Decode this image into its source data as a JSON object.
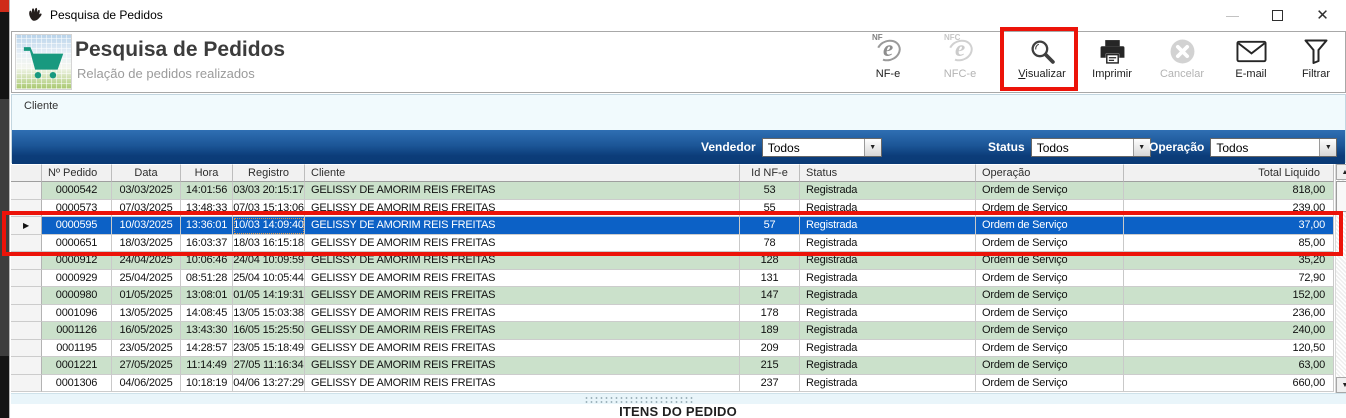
{
  "titlebar": {
    "title": "Pesquisa de Pedidos",
    "controls": {
      "minimize": "—",
      "maximize": "",
      "close": "✕"
    }
  },
  "header": {
    "title": "Pesquisa de Pedidos",
    "subtitle": "Relação de pedidos realizados"
  },
  "toolbar": [
    {
      "id": "nfe",
      "label": "NF-e",
      "icon": "nfe-icon",
      "disabled": false
    },
    {
      "id": "nfce",
      "label": "NFC-e",
      "icon": "nfce-icon",
      "disabled": true
    },
    {
      "id": "visualizar",
      "label": "Visualizar",
      "icon": "magnifier-icon",
      "disabled": false,
      "annotated": true
    },
    {
      "id": "imprimir",
      "label": "Imprimir",
      "icon": "printer-icon",
      "disabled": false
    },
    {
      "id": "cancelar",
      "label": "Cancelar",
      "icon": "cancel-icon",
      "disabled": true
    },
    {
      "id": "email",
      "label": "E-mail",
      "icon": "envelope-icon",
      "disabled": false
    },
    {
      "id": "filtrar",
      "label": "Filtrar",
      "icon": "funnel-icon",
      "disabled": false
    }
  ],
  "filter_panel": {
    "cliente_label": "Cliente",
    "filters": [
      {
        "label": "Vendedor",
        "value": "Todos"
      },
      {
        "label": "Status",
        "value": "Todos"
      },
      {
        "label": "Operação",
        "value": "Todos"
      }
    ]
  },
  "table": {
    "columns": [
      {
        "key": "sel",
        "label": ""
      },
      {
        "key": "pedido",
        "label": "Nº Pedido"
      },
      {
        "key": "data",
        "label": "Data"
      },
      {
        "key": "hora",
        "label": "Hora"
      },
      {
        "key": "registro",
        "label": "Registro"
      },
      {
        "key": "cliente",
        "label": "Cliente"
      },
      {
        "key": "idnfe",
        "label": "Id NF-e"
      },
      {
        "key": "status",
        "label": "Status"
      },
      {
        "key": "operacao",
        "label": "Operação"
      },
      {
        "key": "total",
        "label": "Total Liquido"
      }
    ],
    "rows": [
      {
        "pedido": "0000542",
        "data": "03/03/2025",
        "hora": "14:01:56",
        "registro": "03/03 20:15:17",
        "cliente": "GELISSY DE AMORIM REIS FREITAS",
        "idnfe": "53",
        "status": "Registrada",
        "operacao": "Ordem de Serviço",
        "total": "818,00"
      },
      {
        "pedido": "0000573",
        "data": "07/03/2025",
        "hora": "13:48:33",
        "registro": "07/03 15:13:06",
        "cliente": "GELISSY DE AMORIM REIS FREITAS",
        "idnfe": "55",
        "status": "Registrada",
        "operacao": "Ordem de Serviço",
        "total": "239,00"
      },
      {
        "pedido": "0000595",
        "data": "10/03/2025",
        "hora": "13:36:01",
        "registro": "10/03 14:09:40",
        "cliente": "GELISSY DE AMORIM REIS FREITAS",
        "idnfe": "57",
        "status": "Registrada",
        "operacao": "Ordem de Serviço",
        "total": "37,00"
      },
      {
        "pedido": "0000651",
        "data": "18/03/2025",
        "hora": "16:03:37",
        "registro": "18/03 16:15:18",
        "cliente": "GELISSY DE AMORIM REIS FREITAS",
        "idnfe": "78",
        "status": "Registrada",
        "operacao": "Ordem de Serviço",
        "total": "85,00"
      },
      {
        "pedido": "0000912",
        "data": "24/04/2025",
        "hora": "10:06:46",
        "registro": "24/04 10:09:59",
        "cliente": "GELISSY DE AMORIM REIS FREITAS",
        "idnfe": "128",
        "status": "Registrada",
        "operacao": "Ordem de Serviço",
        "total": "35,20"
      },
      {
        "pedido": "0000929",
        "data": "25/04/2025",
        "hora": "08:51:28",
        "registro": "25/04 10:05:44",
        "cliente": "GELISSY DE AMORIM REIS FREITAS",
        "idnfe": "131",
        "status": "Registrada",
        "operacao": "Ordem de Serviço",
        "total": "72,90"
      },
      {
        "pedido": "0000980",
        "data": "01/05/2025",
        "hora": "13:08:01",
        "registro": "01/05 14:19:31",
        "cliente": "GELISSY DE AMORIM REIS FREITAS",
        "idnfe": "147",
        "status": "Registrada",
        "operacao": "Ordem de Serviço",
        "total": "152,00"
      },
      {
        "pedido": "0001096",
        "data": "13/05/2025",
        "hora": "14:08:45",
        "registro": "13/05 15:03:38",
        "cliente": "GELISSY DE AMORIM REIS FREITAS",
        "idnfe": "178",
        "status": "Registrada",
        "operacao": "Ordem de Serviço",
        "total": "236,00"
      },
      {
        "pedido": "0001126",
        "data": "16/05/2025",
        "hora": "13:43:30",
        "registro": "16/05 15:25:50",
        "cliente": "GELISSY DE AMORIM REIS FREITAS",
        "idnfe": "189",
        "status": "Registrada",
        "operacao": "Ordem de Serviço",
        "total": "240,00"
      },
      {
        "pedido": "0001195",
        "data": "23/05/2025",
        "hora": "14:28:57",
        "registro": "23/05 15:18:49",
        "cliente": "GELISSY DE AMORIM REIS FREITAS",
        "idnfe": "209",
        "status": "Registrada",
        "operacao": "Ordem de Serviço",
        "total": "120,50"
      },
      {
        "pedido": "0001221",
        "data": "27/05/2025",
        "hora": "11:14:49",
        "registro": "27/05 11:16:34",
        "cliente": "GELISSY DE AMORIM REIS FREITAS",
        "idnfe": "215",
        "status": "Registrada",
        "operacao": "Ordem de Serviço",
        "total": "63,00"
      },
      {
        "pedido": "0001306",
        "data": "04/06/2025",
        "hora": "10:18:19",
        "registro": "04/06 13:27:29",
        "cliente": "GELISSY DE AMORIM REIS FREITAS",
        "idnfe": "237",
        "status": "Registrada",
        "operacao": "Ordem de Serviço",
        "total": "660,00"
      }
    ],
    "selected_index": 2,
    "focus_column": "registro"
  },
  "icons": {
    "row_marker": "▶",
    "scroll_up": "▲",
    "scroll_down": "▼",
    "dropdown_arrow": "▼"
  },
  "bottom": {
    "section_title": "ITENS DO PEDIDO"
  },
  "colors": {
    "selected_row": "#0c61c6",
    "striped_row_green": "#cbe1cb",
    "filter_bar_top": "#2f6fb3",
    "filter_bar_bottom": "#0a3a75",
    "annotation_red": "#ec1309",
    "logo_cart_teal": "#18997f"
  }
}
